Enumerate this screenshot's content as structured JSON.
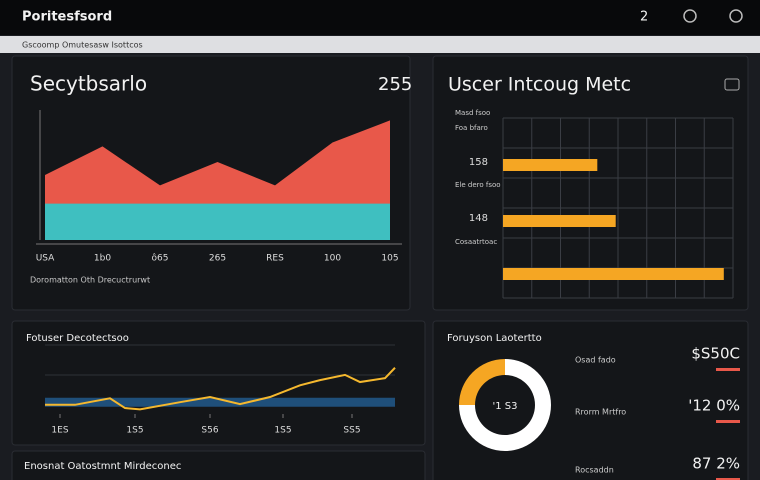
{
  "topbar": {
    "title": "Poritesfsord",
    "badge": "2"
  },
  "subbar": "Gscoomp Omutesasw Isottcos",
  "panels": [
    {
      "title": "Secytbsarlo",
      "value": "255",
      "footer": "Doromatton Oth Drecuctrurwt",
      "chart": {
        "type": "area",
        "categories": [
          "USA",
          "1b0",
          "ô65",
          "265",
          "RES",
          "100",
          "105"
        ],
        "series": [
          {
            "color": "#e8584a",
            "values": [
              50,
              72,
              42,
              60,
              42,
              75,
              92
            ]
          },
          {
            "color": "#3fbfc0",
            "values": [
              28,
              28,
              28,
              28,
              28,
              28,
              28
            ]
          }
        ],
        "ylim": [
          0,
          100
        ]
      }
    },
    {
      "title": "Uscer Intcoug Metc",
      "notes": [
        "Masd fsoo",
        "Foa bfaro",
        "Ele dero fsoo",
        "Cosaatrtoac"
      ],
      "chart": {
        "type": "hbar",
        "categories": [
          "158",
          "148",
          null
        ],
        "values": [
          41,
          49,
          96
        ],
        "color": "#f5a623",
        "xlim": [
          0,
          100
        ]
      }
    },
    {
      "title": "Fotuser Decotectsoo",
      "chart": {
        "type": "line",
        "x": [
          0,
          30,
          65,
          80,
          95,
          135,
          165,
          195,
          225,
          255,
          275,
          300,
          315,
          340,
          350
        ],
        "series": [
          {
            "color": "#f5b82e",
            "values": [
              8,
              8,
              18,
              3,
              1,
              12,
              20,
              9,
              20,
              38,
              46,
              54,
              43,
              49,
              65
            ]
          },
          {
            "color": "#1f4f7a",
            "values": [
              12,
              12,
              12,
              12,
              12,
              12,
              12,
              12,
              12,
              12,
              12,
              12,
              12,
              12,
              12
            ]
          }
        ],
        "xlim": [
          0,
          350
        ],
        "ylim": [
          0,
          100
        ],
        "xticks": [
          {
            "value": 15,
            "label": "1ES"
          },
          {
            "value": 90,
            "label": "1S5"
          },
          {
            "value": 165,
            "label": "S56"
          },
          {
            "value": 238,
            "label": "1S5"
          },
          {
            "value": 307,
            "label": "SS5"
          }
        ]
      }
    },
    {
      "title": "Foruyson Laotertto",
      "center": "'1 S3",
      "stats": [
        {
          "label": "Osad fado",
          "value": "$S50C"
        },
        {
          "label": "Rrorm Mrtfro",
          "value": "'12 0%"
        },
        {
          "label": "Rocsaddn",
          "value": "87 2%"
        }
      ],
      "chart": {
        "type": "donut",
        "values": [
          25,
          75
        ],
        "colors": [
          "#f5a623",
          "#ffffff"
        ]
      }
    },
    {
      "title": "Enosnat Oatostmnt Mirdeconec"
    }
  ]
}
